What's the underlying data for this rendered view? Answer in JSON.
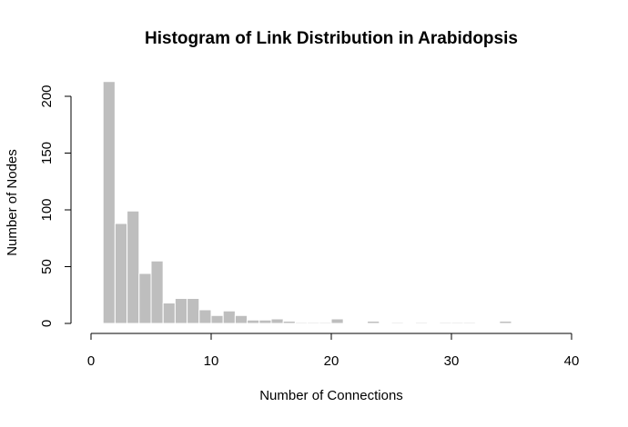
{
  "chart_data": {
    "type": "bar",
    "title": "Histogram of Link Distribution in Arabidopsis",
    "xlabel": "Number of Connections",
    "ylabel": "Number of Nodes",
    "xlim": [
      0,
      40
    ],
    "ylim": [
      0,
      210
    ],
    "x_ticks": [
      0,
      10,
      20,
      30,
      40
    ],
    "y_ticks": [
      0,
      50,
      100,
      150,
      200
    ],
    "grid": false,
    "bar_color": "#bebebe",
    "bar_edge_color": "#ffffff",
    "bins": [
      {
        "start": 1,
        "end": 2,
        "count": 213
      },
      {
        "start": 2,
        "end": 3,
        "count": 88
      },
      {
        "start": 3,
        "end": 4,
        "count": 99
      },
      {
        "start": 4,
        "end": 5,
        "count": 44
      },
      {
        "start": 5,
        "end": 6,
        "count": 55
      },
      {
        "start": 6,
        "end": 7,
        "count": 18
      },
      {
        "start": 7,
        "end": 8,
        "count": 22
      },
      {
        "start": 8,
        "end": 9,
        "count": 22
      },
      {
        "start": 9,
        "end": 10,
        "count": 12
      },
      {
        "start": 10,
        "end": 11,
        "count": 7
      },
      {
        "start": 11,
        "end": 12,
        "count": 11
      },
      {
        "start": 12,
        "end": 13,
        "count": 7
      },
      {
        "start": 13,
        "end": 14,
        "count": 3
      },
      {
        "start": 14,
        "end": 15,
        "count": 3
      },
      {
        "start": 15,
        "end": 16,
        "count": 4
      },
      {
        "start": 16,
        "end": 17,
        "count": 2
      },
      {
        "start": 17,
        "end": 18,
        "count": 1
      },
      {
        "start": 18,
        "end": 19,
        "count": 1
      },
      {
        "start": 19,
        "end": 20,
        "count": 1
      },
      {
        "start": 20,
        "end": 21,
        "count": 4
      },
      {
        "start": 21,
        "end": 22,
        "count": 0
      },
      {
        "start": 22,
        "end": 23,
        "count": 0
      },
      {
        "start": 23,
        "end": 24,
        "count": 2
      },
      {
        "start": 24,
        "end": 25,
        "count": 0
      },
      {
        "start": 25,
        "end": 26,
        "count": 1
      },
      {
        "start": 26,
        "end": 27,
        "count": 0
      },
      {
        "start": 27,
        "end": 28,
        "count": 1
      },
      {
        "start": 28,
        "end": 29,
        "count": 0
      },
      {
        "start": 29,
        "end": 30,
        "count": 1
      },
      {
        "start": 30,
        "end": 31,
        "count": 1
      },
      {
        "start": 31,
        "end": 32,
        "count": 1
      },
      {
        "start": 32,
        "end": 33,
        "count": 0
      },
      {
        "start": 33,
        "end": 34,
        "count": 0
      },
      {
        "start": 34,
        "end": 35,
        "count": 2
      }
    ]
  }
}
